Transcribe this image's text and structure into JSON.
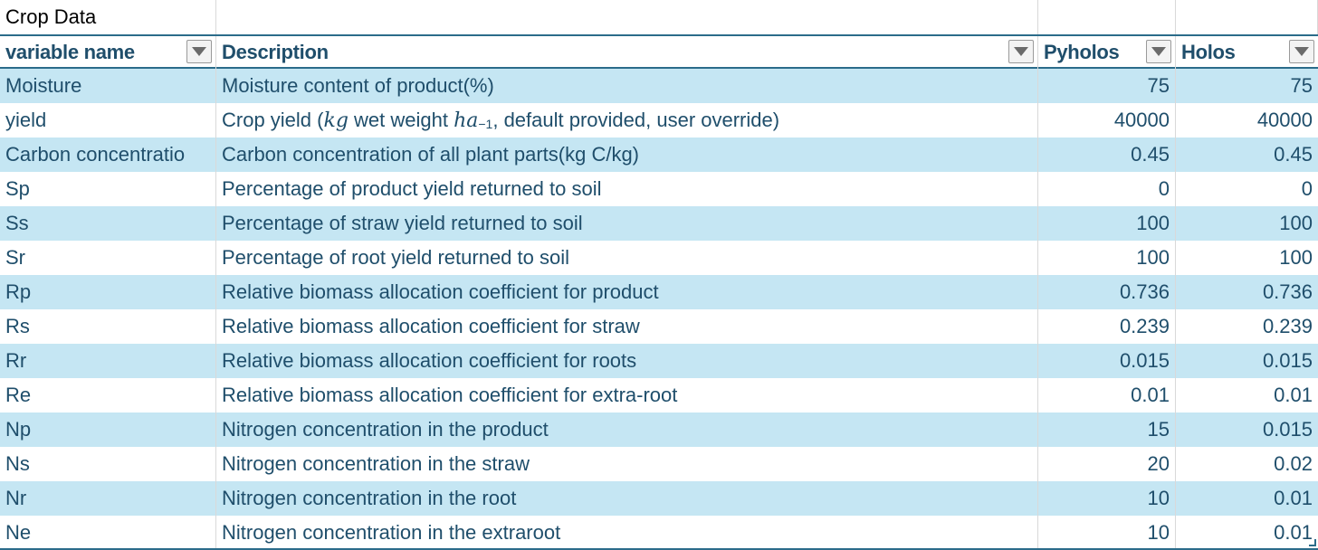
{
  "sheet": {
    "title": "Crop Data",
    "headers": [
      "variable name",
      "Description",
      "Pyholos",
      "Holos"
    ],
    "rows": [
      {
        "name": "Moisture",
        "description": "Moisture content of product(%)",
        "pyholos": "75",
        "holos": "75"
      },
      {
        "name": "yield",
        "description_parts": [
          "Crop yield (",
          "kg",
          " wet weight ",
          "ha",
          "−1",
          ", default provided, user override)"
        ],
        "pyholos": "40000",
        "holos": "40000"
      },
      {
        "name": "Carbon concentratio",
        "description": "Carbon concentration of all plant parts(kg C/kg)",
        "pyholos": "0.45",
        "holos": "0.45"
      },
      {
        "name": "Sp",
        "description": "Percentage of product yield returned to soil",
        "pyholos": "0",
        "holos": "0"
      },
      {
        "name": "Ss",
        "description": "Percentage of straw yield returned to soil",
        "pyholos": "100",
        "holos": "100"
      },
      {
        "name": "Sr",
        "description": "Percentage of root yield returned to soil",
        "pyholos": "100",
        "holos": "100"
      },
      {
        "name": "Rp",
        "description": "Relative biomass allocation coefficient for product",
        "pyholos": "0.736",
        "holos": "0.736"
      },
      {
        "name": "Rs",
        "description": "Relative biomass allocation coefficient for straw",
        "pyholos": "0.239",
        "holos": "0.239"
      },
      {
        "name": "Rr",
        "description": "Relative biomass allocation coefficient for roots",
        "pyholos": "0.015",
        "holos": "0.015"
      },
      {
        "name": "Re",
        "description": "Relative biomass allocation coefficient for extra-root",
        "pyholos": "0.01",
        "holos": "0.01"
      },
      {
        "name": "Np",
        "description": "Nitrogen concentration in the product",
        "pyholos": "15",
        "holos": "0.015"
      },
      {
        "name": "Ns",
        "description": "Nitrogen concentration in the straw",
        "pyholos": "20",
        "holos": "0.02"
      },
      {
        "name": "Nr",
        "description": "Nitrogen concentration in the root",
        "pyholos": "10",
        "holos": "0.01"
      },
      {
        "name": "Ne",
        "description": "Nitrogen concentration in the extraroot",
        "pyholos": "10",
        "holos": "0.01"
      }
    ]
  },
  "colors": {
    "band": "#c5e6f3",
    "text": "#1f4e6b",
    "header_border": "#2b6c8a"
  },
  "icons": {
    "filter": "chevron-down-icon"
  }
}
